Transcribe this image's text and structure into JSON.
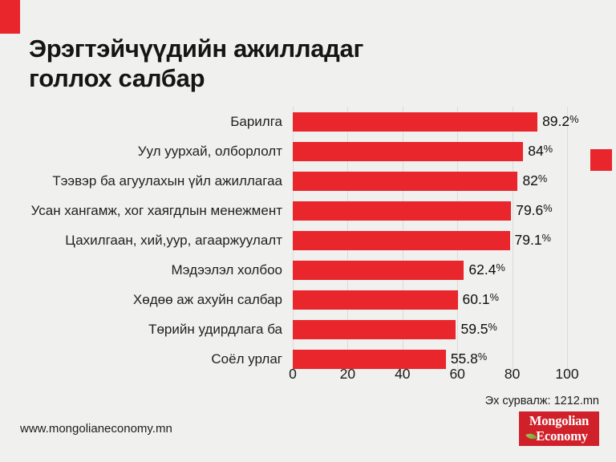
{
  "accent_color": "#e8262c",
  "background_color": "#f0f0ee",
  "title": {
    "line1": "Эрэгтэйчүүдийн ажилладаг",
    "line2": "голлох салбар"
  },
  "chart_data": {
    "type": "bar",
    "orientation": "horizontal",
    "title": "Эрэгтэйчүүдийн ажилладаг голлох салбар",
    "categories": [
      "Барилга",
      "Уул уурхай, олборлолт",
      "Тээвэр ба агуулахын үйл ажиллагаа",
      "Усан хангамж, хог хаягдлын менежмент",
      "Цахилгаан, хий,уур, агааржуулалт",
      "Мэдээлэл холбоо",
      "Хөдөө аж ахуйн салбар",
      "Төрийн удирдлага ба",
      "Соёл урлаг"
    ],
    "values": [
      89.2,
      84,
      82,
      79.6,
      79.1,
      62.4,
      60.1,
      59.5,
      55.8
    ],
    "value_labels": [
      "89.2%",
      "84%",
      "82%",
      "79.6%",
      "79.1%",
      "62.4%",
      "60.1%",
      "59.5%",
      "55.8%"
    ],
    "xlim": [
      0,
      100
    ],
    "x_ticks": [
      0,
      20,
      40,
      60,
      80,
      100
    ],
    "bar_color": "#e8262c",
    "grid": true,
    "unit": "%"
  },
  "footer": {
    "source_label": "Эх сурвалж: 1212.mn",
    "website": "www.mongolianeconomy.mn",
    "logo": {
      "line1": "Mongolian",
      "line2": "Economy",
      "bg_color": "#d0202a",
      "leaf_color": "#7ab648"
    }
  }
}
